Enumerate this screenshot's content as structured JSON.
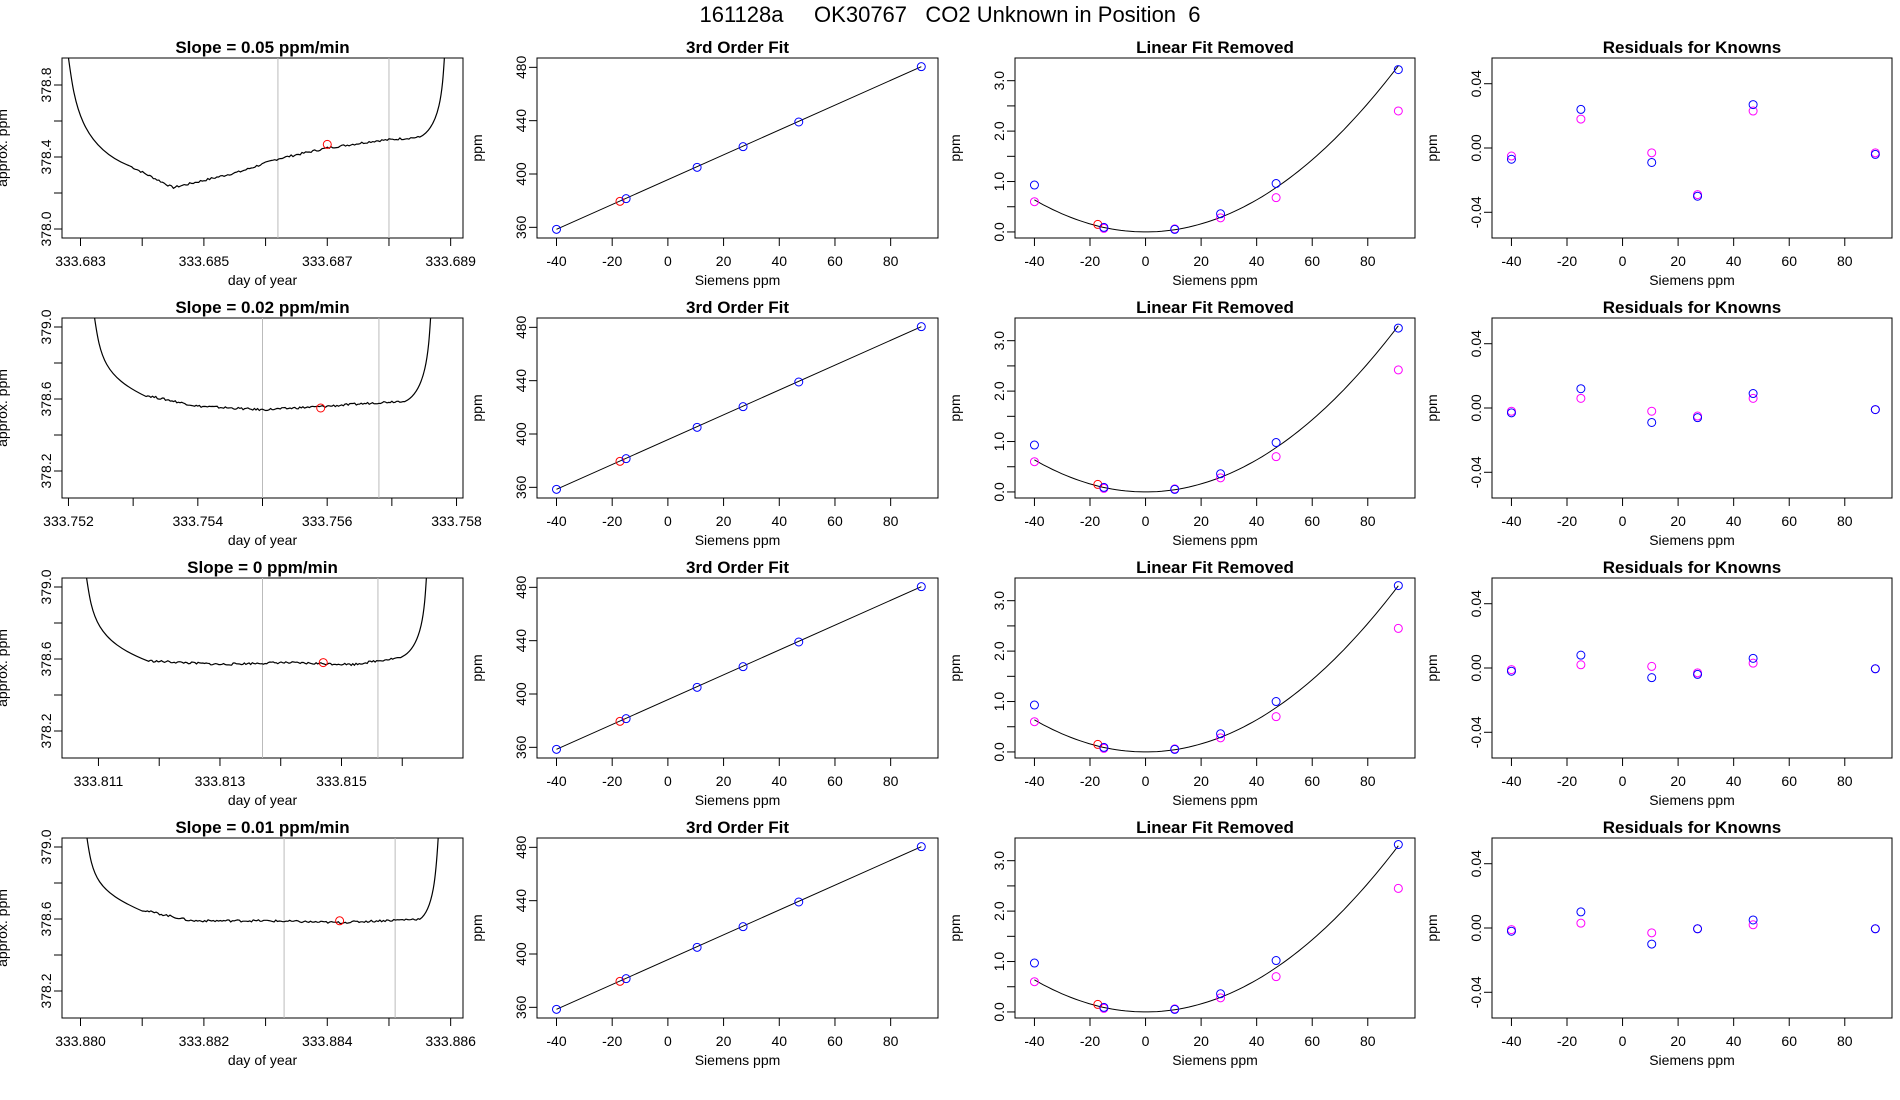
{
  "title": "161128a     OK30767   CO2 Unknown in Position  6",
  "colors": {
    "trace": "#000000",
    "mark": "#ff0000",
    "known": "#0000ff",
    "secondary": "#ff00ff",
    "fit_line": "#000000",
    "window": "#bbbbbb"
  },
  "chart_data": [
    {
      "type": "line",
      "title": "Slope =  0.05  ppm/min",
      "xlabel": "day of year",
      "ylabel": "approx. ppm",
      "xlim": [
        333.6827,
        333.6892
      ],
      "ylim": [
        377.95,
        378.95
      ],
      "xticks": [
        "333.683",
        "333.685",
        "333.687",
        "333.689"
      ],
      "yticks": [
        "378.0",
        "378.4",
        "378.8"
      ],
      "yticks_minor": [
        378.2,
        378.6
      ],
      "window": [
        333.6862,
        333.688
      ],
      "marker": [
        333.687,
        378.47
      ],
      "plateau_start": [
        333.6838,
        378.38
      ],
      "plateau_end": [
        333.6886,
        378.52
      ],
      "trace": {
        "start_x": 333.6828,
        "end_x": 333.6889,
        "shape": [
          [
            333.6838,
            378.35
          ],
          [
            333.6845,
            378.23
          ],
          [
            333.685,
            378.27
          ],
          [
            333.6856,
            378.32
          ],
          [
            333.6862,
            378.39
          ],
          [
            333.687,
            378.45
          ],
          [
            333.6878,
            378.49
          ],
          [
            333.6885,
            378.51
          ]
        ]
      }
    },
    {
      "type": "line",
      "title": "Slope =  0.02  ppm/min",
      "xlabel": "day of year",
      "ylabel": "approx. ppm",
      "xlim": [
        333.7519,
        333.7581
      ],
      "ylim": [
        378.05,
        379.05
      ],
      "xticks": [
        "333.752",
        "333.754",
        "333.756",
        "333.758"
      ],
      "yticks": [
        "378.2",
        "378.6",
        "379.0"
      ],
      "yticks_minor": [
        378.4,
        378.8
      ],
      "window": [
        333.755,
        333.7568
      ],
      "marker": [
        333.7559,
        378.55
      ],
      "trace": {
        "start_x": 333.7524,
        "end_x": 333.7576,
        "shape": [
          [
            333.7532,
            378.62
          ],
          [
            333.754,
            378.56
          ],
          [
            333.755,
            378.54
          ],
          [
            333.756,
            378.56
          ],
          [
            333.7572,
            378.59
          ]
        ]
      }
    },
    {
      "type": "line",
      "title": "Slope =  0  ppm/min",
      "xlabel": "day of year",
      "ylabel": "approx. ppm",
      "xlim": [
        333.8104,
        333.817
      ],
      "ylim": [
        378.05,
        379.05
      ],
      "xticks": [
        "333.811",
        "333.813",
        "333.815"
      ],
      "yticks": [
        "378.2",
        "378.6",
        "379.0"
      ],
      "yticks_minor": [
        378.4,
        378.8
      ],
      "window": [
        333.8137,
        333.8156
      ],
      "marker": [
        333.8147,
        378.58
      ],
      "trace": {
        "start_x": 333.8108,
        "end_x": 333.8164,
        "shape": [
          [
            333.8118,
            378.59
          ],
          [
            333.813,
            378.57
          ],
          [
            333.814,
            378.58
          ],
          [
            333.8152,
            378.57
          ],
          [
            333.816,
            378.61
          ]
        ]
      }
    },
    {
      "type": "line",
      "title": "Slope =  0.01  ppm/min",
      "xlabel": "day of year",
      "ylabel": "approx. ppm",
      "xlim": [
        333.8797,
        333.8862
      ],
      "ylim": [
        378.05,
        379.05
      ],
      "xticks": [
        "333.880",
        "333.882",
        "333.884",
        "333.886"
      ],
      "yticks": [
        "378.2",
        "378.6",
        "379.0"
      ],
      "yticks_minor": [
        378.4,
        378.8
      ],
      "window": [
        333.8833,
        333.8851
      ],
      "marker": [
        333.8842,
        378.59
      ],
      "trace": {
        "start_x": 333.8801,
        "end_x": 333.8858,
        "shape": [
          [
            333.881,
            378.65
          ],
          [
            333.8818,
            378.59
          ],
          [
            333.883,
            378.59
          ],
          [
            333.8842,
            378.58
          ],
          [
            333.8855,
            378.6
          ]
        ]
      }
    },
    {
      "type": "scatter",
      "title": "3rd Order Fit",
      "xlabel": "Siemens ppm",
      "ylabel": "ppm",
      "xlim": [
        -47,
        97
      ],
      "ylim": [
        352,
        487
      ],
      "xticks": [
        "-40",
        "-20",
        "0",
        "20",
        "40",
        "60",
        "80"
      ],
      "yticks": [
        "360",
        "400",
        "440",
        "480"
      ],
      "fit_line": [
        [
          -40,
          358.5
        ],
        [
          91,
          480.5
        ]
      ],
      "knowns": [
        [
          -40,
          358.5
        ],
        [
          -15,
          381.5
        ],
        [
          10.5,
          405
        ],
        [
          27,
          420.5
        ],
        [
          47,
          439
        ],
        [
          91,
          480.5
        ]
      ],
      "unknown": [
        -17.2,
        379.5
      ]
    },
    {
      "type": "scatter",
      "title": "3rd Order Fit",
      "xlabel": "Siemens ppm",
      "ylabel": "ppm",
      "xlim": [
        -47,
        97
      ],
      "ylim": [
        352,
        487
      ],
      "xticks": [
        "-40",
        "-20",
        "0",
        "20",
        "40",
        "60",
        "80"
      ],
      "yticks": [
        "360",
        "400",
        "440",
        "480"
      ],
      "fit_line": [
        [
          -40,
          358.5
        ],
        [
          91,
          480.5
        ]
      ],
      "knowns": [
        [
          -40,
          358.5
        ],
        [
          -15,
          381.5
        ],
        [
          10.5,
          405
        ],
        [
          27,
          420.5
        ],
        [
          47,
          439
        ],
        [
          91,
          480.5
        ]
      ],
      "unknown": [
        -17.2,
        379.5
      ]
    },
    {
      "type": "scatter",
      "title": "3rd Order Fit",
      "xlabel": "Siemens ppm",
      "ylabel": "ppm",
      "xlim": [
        -47,
        97
      ],
      "ylim": [
        352,
        487
      ],
      "xticks": [
        "-40",
        "-20",
        "0",
        "20",
        "40",
        "60",
        "80"
      ],
      "yticks": [
        "360",
        "400",
        "440",
        "480"
      ],
      "fit_line": [
        [
          -40,
          358.5
        ],
        [
          91,
          480.5
        ]
      ],
      "knowns": [
        [
          -40,
          358.5
        ],
        [
          -15,
          381.5
        ],
        [
          10.5,
          405
        ],
        [
          27,
          420.5
        ],
        [
          47,
          439
        ],
        [
          91,
          480.5
        ]
      ],
      "unknown": [
        -17.2,
        379.5
      ]
    },
    {
      "type": "scatter",
      "title": "3rd Order Fit",
      "xlabel": "Siemens ppm",
      "ylabel": "ppm",
      "xlim": [
        -47,
        97
      ],
      "ylim": [
        352,
        487
      ],
      "xticks": [
        "-40",
        "-20",
        "0",
        "20",
        "40",
        "60",
        "80"
      ],
      "yticks": [
        "360",
        "400",
        "440",
        "480"
      ],
      "fit_line": [
        [
          -40,
          358.5
        ],
        [
          91,
          480.5
        ]
      ],
      "knowns": [
        [
          -40,
          358.5
        ],
        [
          -15,
          381.5
        ],
        [
          10.5,
          405
        ],
        [
          27,
          420.5
        ],
        [
          47,
          439
        ],
        [
          91,
          480.5
        ]
      ],
      "unknown": [
        -17.2,
        379.5
      ]
    },
    {
      "type": "scatter",
      "title": "Linear Fit Removed",
      "xlabel": "Siemens ppm",
      "ylabel": "ppm",
      "xlim": [
        -47,
        97
      ],
      "ylim": [
        -0.12,
        3.45
      ],
      "xticks": [
        "-40",
        "-20",
        "0",
        "20",
        "40",
        "60",
        "80"
      ],
      "yticks": [
        "0.0",
        "1.0",
        "2.0",
        "3.0"
      ],
      "yticks_minor": [
        0.5,
        1.5,
        2.5
      ],
      "curve": {
        "a": 0.000398,
        "b": 0,
        "c": 0,
        "xmin": -40,
        "xmax": 91
      },
      "knowns": [
        [
          -40,
          0.93
        ],
        [
          -15,
          0.09
        ],
        [
          10.5,
          0.05
        ],
        [
          27,
          0.36
        ],
        [
          47,
          0.96
        ],
        [
          91,
          3.22
        ]
      ],
      "knowns2": [
        [
          -40,
          0.6
        ],
        [
          -15,
          0.07
        ],
        [
          10.5,
          0.06
        ],
        [
          27,
          0.28
        ],
        [
          47,
          0.68
        ],
        [
          91,
          2.4
        ]
      ],
      "unknown": [
        -17.2,
        0.15
      ]
    },
    {
      "type": "scatter",
      "title": "Linear Fit Removed",
      "xlabel": "Siemens ppm",
      "ylabel": "ppm",
      "xlim": [
        -47,
        97
      ],
      "ylim": [
        -0.12,
        3.45
      ],
      "xticks": [
        "-40",
        "-20",
        "0",
        "20",
        "40",
        "60",
        "80"
      ],
      "yticks": [
        "0.0",
        "1.0",
        "2.0",
        "3.0"
      ],
      "yticks_minor": [
        0.5,
        1.5,
        2.5
      ],
      "curve": {
        "a": 0.000398,
        "b": 0,
        "c": 0,
        "xmin": -40,
        "xmax": 91
      },
      "knowns": [
        [
          -40,
          0.93
        ],
        [
          -15,
          0.09
        ],
        [
          10.5,
          0.05
        ],
        [
          27,
          0.36
        ],
        [
          47,
          0.98
        ],
        [
          91,
          3.25
        ]
      ],
      "knowns2": [
        [
          -40,
          0.6
        ],
        [
          -15,
          0.07
        ],
        [
          10.5,
          0.06
        ],
        [
          27,
          0.28
        ],
        [
          47,
          0.7
        ],
        [
          91,
          2.42
        ]
      ],
      "unknown": [
        -17.2,
        0.15
      ]
    },
    {
      "type": "scatter",
      "title": "Linear Fit Removed",
      "xlabel": "Siemens ppm",
      "ylabel": "ppm",
      "xlim": [
        -47,
        97
      ],
      "ylim": [
        -0.12,
        3.45
      ],
      "xticks": [
        "-40",
        "-20",
        "0",
        "20",
        "40",
        "60",
        "80"
      ],
      "yticks": [
        "0.0",
        "1.0",
        "2.0",
        "3.0"
      ],
      "yticks_minor": [
        0.5,
        1.5,
        2.5
      ],
      "curve": {
        "a": 0.000398,
        "b": 0,
        "c": 0,
        "xmin": -40,
        "xmax": 91
      },
      "knowns": [
        [
          -40,
          0.93
        ],
        [
          -15,
          0.09
        ],
        [
          10.5,
          0.05
        ],
        [
          27,
          0.36
        ],
        [
          47,
          1.0
        ],
        [
          91,
          3.3
        ]
      ],
      "knowns2": [
        [
          -40,
          0.6
        ],
        [
          -15,
          0.07
        ],
        [
          10.5,
          0.06
        ],
        [
          27,
          0.28
        ],
        [
          47,
          0.7
        ],
        [
          91,
          2.45
        ]
      ],
      "unknown": [
        -17.2,
        0.15
      ]
    },
    {
      "type": "scatter",
      "title": "Linear Fit Removed",
      "xlabel": "Siemens ppm",
      "ylabel": "ppm",
      "xlim": [
        -47,
        97
      ],
      "ylim": [
        -0.12,
        3.45
      ],
      "xticks": [
        "-40",
        "-20",
        "0",
        "20",
        "40",
        "60",
        "80"
      ],
      "yticks": [
        "0.0",
        "1.0",
        "2.0",
        "3.0"
      ],
      "yticks_minor": [
        0.5,
        1.5,
        2.5
      ],
      "curve": {
        "a": 0.000398,
        "b": 0,
        "c": 0,
        "xmin": -40,
        "xmax": 91
      },
      "knowns": [
        [
          -40,
          0.97
        ],
        [
          -15,
          0.09
        ],
        [
          10.5,
          0.05
        ],
        [
          27,
          0.36
        ],
        [
          47,
          1.02
        ],
        [
          91,
          3.32
        ]
      ],
      "knowns2": [
        [
          -40,
          0.6
        ],
        [
          -15,
          0.07
        ],
        [
          10.5,
          0.06
        ],
        [
          27,
          0.28
        ],
        [
          47,
          0.7
        ],
        [
          91,
          2.45
        ]
      ],
      "unknown": [
        -17.2,
        0.15
      ]
    },
    {
      "type": "scatter",
      "title": "Residuals for Knowns",
      "xlabel": "Siemens ppm",
      "ylabel": "ppm",
      "xlim": [
        -47,
        97
      ],
      "ylim": [
        -0.056,
        0.056
      ],
      "xticks": [
        "-40",
        "-20",
        "0",
        "20",
        "40",
        "60",
        "80"
      ],
      "yticks": [
        "-0.04",
        "0.00",
        "0.04"
      ],
      "knowns": [
        [
          -40,
          -0.007
        ],
        [
          -15,
          0.024
        ],
        [
          10.5,
          -0.009
        ],
        [
          27,
          -0.03
        ],
        [
          47,
          0.027
        ],
        [
          91,
          -0.004
        ]
      ],
      "knowns2": [
        [
          -40,
          -0.005
        ],
        [
          -15,
          0.018
        ],
        [
          10.5,
          -0.003
        ],
        [
          27,
          -0.029
        ],
        [
          47,
          0.023
        ],
        [
          91,
          -0.003
        ]
      ]
    },
    {
      "type": "scatter",
      "title": "Residuals for Knowns",
      "xlabel": "Siemens ppm",
      "ylabel": "ppm",
      "xlim": [
        -47,
        97
      ],
      "ylim": [
        -0.056,
        0.056
      ],
      "xticks": [
        "-40",
        "-20",
        "0",
        "20",
        "40",
        "60",
        "80"
      ],
      "yticks": [
        "-0.04",
        "0.00",
        "0.04"
      ],
      "knowns": [
        [
          -40,
          -0.003
        ],
        [
          -15,
          0.012
        ],
        [
          10.5,
          -0.009
        ],
        [
          27,
          -0.006
        ],
        [
          47,
          0.009
        ],
        [
          91,
          -0.001
        ]
      ],
      "knowns2": [
        [
          -40,
          -0.002
        ],
        [
          -15,
          0.006
        ],
        [
          10.5,
          -0.002
        ],
        [
          27,
          -0.005
        ],
        [
          47,
          0.006
        ],
        [
          91,
          -0.001
        ]
      ]
    },
    {
      "type": "scatter",
      "title": "Residuals for Knowns",
      "xlabel": "Siemens ppm",
      "ylabel": "ppm",
      "xlim": [
        -47,
        97
      ],
      "ylim": [
        -0.056,
        0.056
      ],
      "xticks": [
        "-40",
        "-20",
        "0",
        "20",
        "40",
        "60",
        "80"
      ],
      "yticks": [
        "-0.04",
        "0.00",
        "0.04"
      ],
      "knowns": [
        [
          -40,
          -0.002
        ],
        [
          -15,
          0.008
        ],
        [
          10.5,
          -0.006
        ],
        [
          27,
          -0.004
        ],
        [
          47,
          0.006
        ],
        [
          91,
          -0.0005
        ]
      ],
      "knowns2": [
        [
          -40,
          -0.001
        ],
        [
          -15,
          0.002
        ],
        [
          10.5,
          0.001
        ],
        [
          27,
          -0.003
        ],
        [
          47,
          0.003
        ],
        [
          91,
          -0.0005
        ]
      ]
    },
    {
      "type": "scatter",
      "title": "Residuals for Knowns",
      "xlabel": "Siemens ppm",
      "ylabel": "ppm",
      "xlim": [
        -47,
        97
      ],
      "ylim": [
        -0.056,
        0.056
      ],
      "xticks": [
        "-40",
        "-20",
        "0",
        "20",
        "40",
        "60",
        "80"
      ],
      "yticks": [
        "-0.04",
        "0.00",
        "0.04"
      ],
      "knowns": [
        [
          -40,
          -0.002
        ],
        [
          -15,
          0.01
        ],
        [
          10.5,
          -0.01
        ],
        [
          27,
          -0.0005
        ],
        [
          47,
          0.005
        ],
        [
          91,
          -0.0005
        ]
      ],
      "knowns2": [
        [
          -40,
          -0.001
        ],
        [
          -15,
          0.003
        ],
        [
          10.5,
          -0.003
        ],
        [
          27,
          -0.0005
        ],
        [
          47,
          0.002
        ],
        [
          91,
          -0.0005
        ]
      ]
    }
  ]
}
